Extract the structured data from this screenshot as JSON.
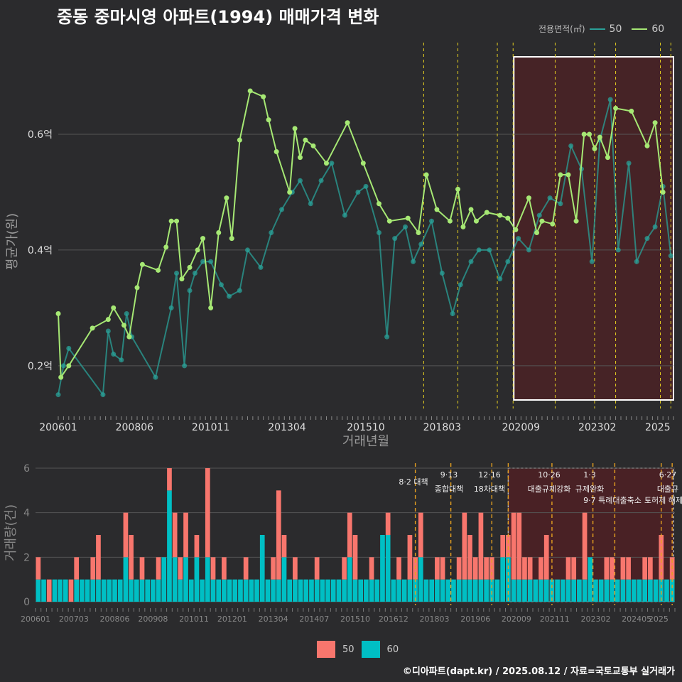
{
  "title": "중동 중마시영 아파트(1994) 매매가격 변화",
  "legend_top": {
    "title": "전용면적(㎡)",
    "items": [
      {
        "label": "50",
        "color": "#2aa198"
      },
      {
        "label": "60",
        "color": "#a6e874"
      }
    ]
  },
  "legend_bottom": {
    "items": [
      {
        "label": "50",
        "color": "#f8766d"
      },
      {
        "label": "60",
        "color": "#00bfc4"
      }
    ]
  },
  "credit": "©디아파트(dapt.kr) / 2025.08.12 / 자료=국토교통부 실거래가",
  "chart_data": [
    {
      "type": "line",
      "xlabel": "거래년월",
      "ylabel": "평균가(원)",
      "x_ticks": [
        "200601",
        "200806",
        "201011",
        "201304",
        "201510",
        "201803",
        "202009",
        "202302",
        "2025"
      ],
      "y_ticks": [
        {
          "value": 0.2,
          "label": "0.2억"
        },
        {
          "value": 0.4,
          "label": "0.4억"
        },
        {
          "value": 0.6,
          "label": "0.6억"
        }
      ],
      "ylim": [
        0.12,
        0.74
      ],
      "xlim": [
        "2006-01",
        "2025-07"
      ],
      "highlight_range": [
        "2020-06",
        "2025-07"
      ],
      "policy_lines": [
        "2017-08",
        "2018-09",
        "2019-12",
        "2020-06",
        "2021-10",
        "2023-01",
        "2023-09",
        "2025-02",
        "2025-06"
      ],
      "series": [
        {
          "name": "60",
          "color": "#a6e874",
          "points": [
            [
              "2006-01",
              0.29
            ],
            [
              "2006-02",
              0.18
            ],
            [
              "2006-05",
              0.2
            ],
            [
              "2007-02",
              0.265
            ],
            [
              "2007-08",
              0.28
            ],
            [
              "2007-10",
              0.3
            ],
            [
              "2008-02",
              0.27
            ],
            [
              "2008-04",
              0.25
            ],
            [
              "2008-07",
              0.335
            ],
            [
              "2008-09",
              0.375
            ],
            [
              "2009-03",
              0.365
            ],
            [
              "2009-06",
              0.405
            ],
            [
              "2009-08",
              0.45
            ],
            [
              "2009-10",
              0.45
            ],
            [
              "2009-12",
              0.35
            ],
            [
              "2010-03",
              0.37
            ],
            [
              "2010-06",
              0.4
            ],
            [
              "2010-08",
              0.42
            ],
            [
              "2010-11",
              0.3
            ],
            [
              "2011-02",
              0.43
            ],
            [
              "2011-05",
              0.49
            ],
            [
              "2011-07",
              0.42
            ],
            [
              "2011-10",
              0.59
            ],
            [
              "2012-02",
              0.675
            ],
            [
              "2012-07",
              0.665
            ],
            [
              "2012-09",
              0.625
            ],
            [
              "2012-12",
              0.57
            ],
            [
              "2013-05",
              0.5
            ],
            [
              "2013-07",
              0.61
            ],
            [
              "2013-09",
              0.56
            ],
            [
              "2013-11",
              0.59
            ],
            [
              "2014-02",
              0.58
            ],
            [
              "2014-07",
              0.55
            ],
            [
              "2015-03",
              0.62
            ],
            [
              "2015-09",
              0.55
            ],
            [
              "2016-03",
              0.48
            ],
            [
              "2016-07",
              0.45
            ],
            [
              "2017-02",
              0.455
            ],
            [
              "2017-06",
              0.43
            ],
            [
              "2017-09",
              0.53
            ],
            [
              "2018-01",
              0.47
            ],
            [
              "2018-06",
              0.45
            ],
            [
              "2018-09",
              0.505
            ],
            [
              "2018-11",
              0.44
            ],
            [
              "2019-02",
              0.47
            ],
            [
              "2019-04",
              0.45
            ],
            [
              "2019-08",
              0.465
            ],
            [
              "2020-01",
              0.46
            ],
            [
              "2020-04",
              0.455
            ],
            [
              "2020-07",
              0.435
            ],
            [
              "2020-12",
              0.49
            ],
            [
              "2021-03",
              0.43
            ],
            [
              "2021-05",
              0.45
            ],
            [
              "2021-09",
              0.445
            ],
            [
              "2021-12",
              0.53
            ],
            [
              "2022-03",
              0.53
            ],
            [
              "2022-06",
              0.45
            ],
            [
              "2022-09",
              0.6
            ],
            [
              "2022-11",
              0.6
            ],
            [
              "2023-01",
              0.575
            ],
            [
              "2023-03",
              0.595
            ],
            [
              "2023-06",
              0.56
            ],
            [
              "2023-09",
              0.645
            ],
            [
              "2024-03",
              0.64
            ],
            [
              "2024-09",
              0.58
            ],
            [
              "2024-12",
              0.62
            ],
            [
              "2025-03",
              0.5
            ]
          ]
        },
        {
          "name": "50",
          "color": "#2aa198",
          "points": [
            [
              "2006-01",
              0.15
            ],
            [
              "2006-03",
              0.2
            ],
            [
              "2006-05",
              0.23
            ],
            [
              "2007-06",
              0.15
            ],
            [
              "2007-08",
              0.26
            ],
            [
              "2007-10",
              0.22
            ],
            [
              "2008-01",
              0.21
            ],
            [
              "2008-03",
              0.29
            ],
            [
              "2008-05",
              0.25
            ],
            [
              "2009-02",
              0.18
            ],
            [
              "2009-08",
              0.3
            ],
            [
              "2009-10",
              0.36
            ],
            [
              "2010-01",
              0.2
            ],
            [
              "2010-03",
              0.33
            ],
            [
              "2010-05",
              0.36
            ],
            [
              "2010-08",
              0.38
            ],
            [
              "2010-11",
              0.38
            ],
            [
              "2011-03",
              0.34
            ],
            [
              "2011-06",
              0.32
            ],
            [
              "2011-10",
              0.33
            ],
            [
              "2012-01",
              0.4
            ],
            [
              "2012-06",
              0.37
            ],
            [
              "2012-10",
              0.43
            ],
            [
              "2013-02",
              0.47
            ],
            [
              "2013-06",
              0.5
            ],
            [
              "2013-09",
              0.52
            ],
            [
              "2014-01",
              0.48
            ],
            [
              "2014-05",
              0.52
            ],
            [
              "2014-09",
              0.55
            ],
            [
              "2015-02",
              0.46
            ],
            [
              "2015-07",
              0.5
            ],
            [
              "2015-10",
              0.51
            ],
            [
              "2016-03",
              0.43
            ],
            [
              "2016-06",
              0.25
            ],
            [
              "2016-09",
              0.42
            ],
            [
              "2017-01",
              0.44
            ],
            [
              "2017-04",
              0.38
            ],
            [
              "2017-07",
              0.41
            ],
            [
              "2017-11",
              0.45
            ],
            [
              "2018-03",
              0.36
            ],
            [
              "2018-07",
              0.29
            ],
            [
              "2018-10",
              0.34
            ],
            [
              "2019-02",
              0.38
            ],
            [
              "2019-05",
              0.4
            ],
            [
              "2019-09",
              0.4
            ],
            [
              "2020-01",
              0.35
            ],
            [
              "2020-04",
              0.38
            ],
            [
              "2020-08",
              0.42
            ],
            [
              "2020-12",
              0.4
            ],
            [
              "2021-04",
              0.46
            ],
            [
              "2021-08",
              0.49
            ],
            [
              "2021-12",
              0.48
            ],
            [
              "2022-04",
              0.58
            ],
            [
              "2022-08",
              0.54
            ],
            [
              "2022-12",
              0.38
            ],
            [
              "2023-03",
              0.59
            ],
            [
              "2023-07",
              0.66
            ],
            [
              "2023-10",
              0.4
            ],
            [
              "2024-02",
              0.55
            ],
            [
              "2024-05",
              0.38
            ],
            [
              "2024-09",
              0.42
            ],
            [
              "2024-12",
              0.44
            ],
            [
              "2025-03",
              0.51
            ],
            [
              "2025-06",
              0.39
            ]
          ]
        }
      ]
    },
    {
      "type": "bar",
      "ylabel": "거래량(건)",
      "y_ticks": [
        0,
        2,
        4,
        6
      ],
      "ylim": [
        0,
        6
      ],
      "x_ticks": [
        "200601",
        "200703",
        "200806",
        "200908",
        "201011",
        "201201",
        "201304",
        "201407",
        "201510",
        "201612",
        "201803",
        "201906",
        "202009",
        "202111",
        "202302",
        "202405",
        "2025"
      ],
      "highlight_range": [
        "2020-06",
        "2025-07"
      ],
      "policy_events": [
        {
          "date": "2017-08",
          "line1": "8·2 대책",
          "line2": ""
        },
        {
          "date": "2018-09",
          "line1": "9·13",
          "line2": "종합대책"
        },
        {
          "date": "2019-12",
          "line1": "12·16",
          "line2": "18차대책"
        },
        {
          "date": "2020-06",
          "line1": "",
          "line2": ""
        },
        {
          "date": "2021-10",
          "line1": "10·26",
          "line2": "대출규제강화"
        },
        {
          "date": "2023-01",
          "line1": "1·3",
          "line2": "규제완화"
        },
        {
          "date": "2023-09",
          "line1": "",
          "line2": "9·7 특례대출축소"
        },
        {
          "date": "2025-02",
          "line1": "",
          "line2": "토허제 해제"
        },
        {
          "date": "2025-06",
          "line1": "6·27",
          "line2": "대출규"
        }
      ],
      "series": [
        {
          "name": "50",
          "color": "#f8766d",
          "values": [
            2,
            1,
            1,
            0,
            0,
            1,
            1,
            2,
            1,
            1,
            2,
            3,
            1,
            0,
            1,
            1,
            4,
            3,
            1,
            2,
            1,
            1,
            2,
            1,
            6,
            4,
            2,
            4,
            1,
            3,
            1,
            6,
            2,
            1,
            2,
            1,
            1,
            1,
            2,
            1,
            1,
            3,
            1,
            2,
            5,
            3,
            1,
            2,
            1,
            1,
            1,
            2,
            1,
            1,
            1,
            1,
            2,
            4,
            3,
            1,
            1,
            2,
            1,
            2,
            4,
            1,
            2,
            1,
            3,
            2,
            4,
            1,
            1,
            2,
            2,
            1,
            1,
            2,
            4,
            3,
            2,
            4,
            2,
            2,
            1,
            3,
            3,
            4,
            4,
            2,
            2,
            1,
            2,
            3,
            1,
            1,
            1,
            2,
            2,
            1,
            4,
            2,
            1,
            1,
            2,
            2,
            1,
            2,
            2,
            1,
            1,
            2,
            2,
            1,
            3,
            1,
            2
          ]
        },
        {
          "name": "60",
          "color": "#00bfc4",
          "values": [
            1,
            1,
            0,
            1,
            1,
            1,
            0,
            1,
            1,
            1,
            1,
            1,
            1,
            1,
            1,
            1,
            2,
            1,
            1,
            1,
            1,
            1,
            1,
            2,
            5,
            2,
            1,
            2,
            1,
            2,
            1,
            2,
            1,
            1,
            1,
            1,
            1,
            1,
            1,
            1,
            1,
            3,
            1,
            1,
            1,
            2,
            1,
            1,
            1,
            1,
            1,
            1,
            1,
            1,
            1,
            1,
            1,
            2,
            1,
            1,
            1,
            1,
            1,
            3,
            3,
            1,
            1,
            1,
            1,
            1,
            2,
            1,
            1,
            1,
            1,
            1,
            1,
            1,
            1,
            1,
            1,
            1,
            1,
            1,
            1,
            2,
            2,
            1,
            1,
            1,
            1,
            1,
            1,
            1,
            1,
            1,
            1,
            1,
            1,
            1,
            1,
            2,
            1,
            1,
            1,
            1,
            1,
            1,
            1,
            1,
            1,
            1,
            1,
            1,
            1,
            1,
            1
          ]
        }
      ]
    }
  ]
}
